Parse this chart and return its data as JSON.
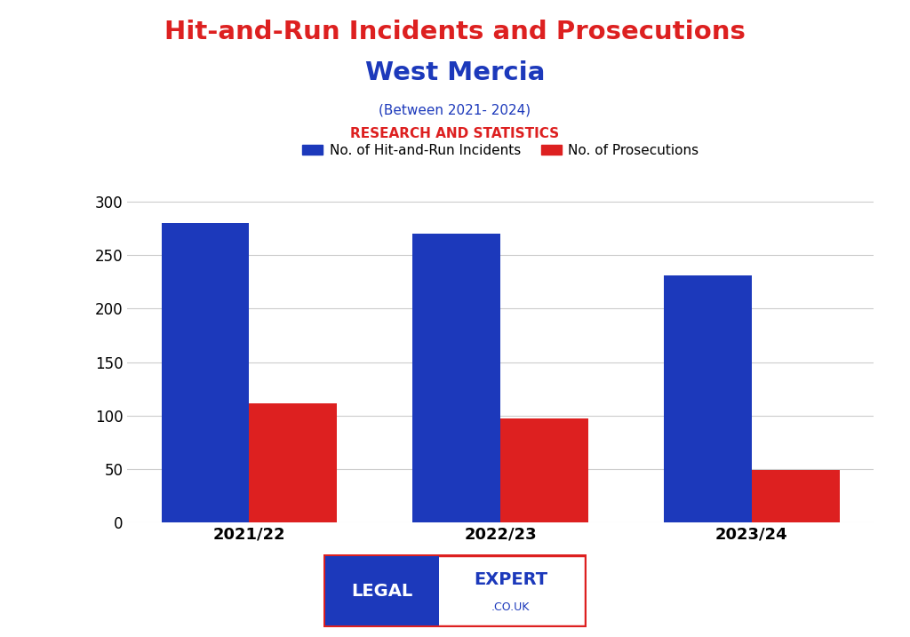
{
  "title_line1": "Hit-and-Run Incidents and Prosecutions",
  "title_line2": "West Mercia",
  "subtitle": "(Between 2021- 2024)",
  "subtitle2": "RESEARCH AND STATISTICS",
  "categories": [
    "2021/22",
    "2022/23",
    "2023/24"
  ],
  "incidents": [
    280,
    270,
    231
  ],
  "prosecutions": [
    111,
    97,
    49
  ],
  "bar_color_incidents": "#1c39bb",
  "bar_color_prosecutions": "#dd2020",
  "title_color_line1": "#dd2020",
  "title_color_line2": "#1c39bb",
  "subtitle_color": "#1c39bb",
  "subtitle2_color": "#dd2020",
  "legend_label_incidents": "No. of Hit-and-Run Incidents",
  "legend_label_prosecutions": "No. of Prosecutions",
  "ylim": [
    0,
    310
  ],
  "yticks": [
    0,
    50,
    100,
    150,
    200,
    250,
    300
  ],
  "background_color": "#ffffff",
  "grid_color": "#cccccc",
  "bar_width": 0.35,
  "logo_text_legal": "LEGAL",
  "logo_text_expert": "EXPERT",
  "logo_text_couk": ".CO.UK",
  "logo_border_color": "#dd2020",
  "logo_blue": "#1c39bb"
}
